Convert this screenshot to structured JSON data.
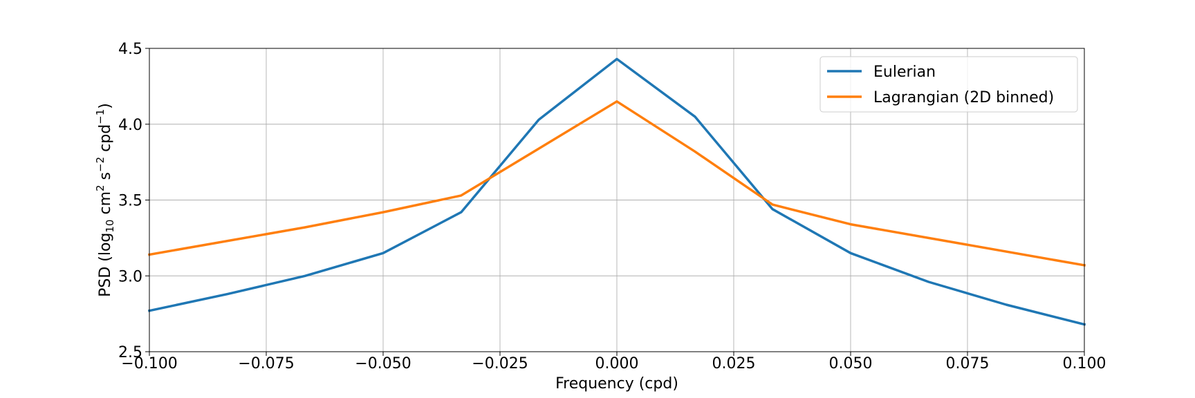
{
  "chart_data": {
    "type": "line",
    "xlabel": "Frequency (cpd)",
    "ylabel": {
      "prefix": "PSD (log",
      "log_subscript": "10",
      "unit_1": " cm",
      "unit_1_exp": "2",
      "unit_2": " s",
      "unit_2_exp": "−2",
      "unit_3": " cpd",
      "unit_3_exp": "−1",
      "suffix": ")"
    },
    "xlim": [
      -0.1,
      0.1
    ],
    "ylim": [
      2.5,
      4.5
    ],
    "xticks": [
      -0.1,
      -0.075,
      -0.05,
      -0.025,
      0.0,
      0.025,
      0.05,
      0.075,
      0.1
    ],
    "xtick_labels": [
      "−0.100",
      "−0.075",
      "−0.050",
      "−0.025",
      "0.000",
      "0.025",
      "0.050",
      "0.075",
      "0.100"
    ],
    "yticks": [
      2.5,
      3.0,
      3.5,
      4.0,
      4.5
    ],
    "ytick_labels": [
      "2.5",
      "3.0",
      "3.5",
      "4.0",
      "4.5"
    ],
    "grid": true,
    "legend_position": "top-right",
    "series": [
      {
        "name": "Eulerian",
        "color": "#1f77b4",
        "x": [
          -0.1,
          -0.0833,
          -0.0667,
          -0.05,
          -0.0333,
          -0.0167,
          0.0,
          0.0167,
          0.0333,
          0.05,
          0.0667,
          0.0833,
          0.1
        ],
        "y": [
          2.77,
          2.88,
          3.0,
          3.15,
          3.42,
          4.03,
          4.43,
          4.05,
          3.44,
          3.15,
          2.96,
          2.81,
          2.68
        ]
      },
      {
        "name": "Lagrangian (2D binned)",
        "color": "#ff7f0e",
        "x": [
          -0.1,
          -0.0667,
          -0.05,
          -0.0333,
          0.0,
          0.0167,
          0.0333,
          0.05,
          0.1
        ],
        "y": [
          3.14,
          3.32,
          3.42,
          3.53,
          4.15,
          3.82,
          3.47,
          3.34,
          3.07
        ]
      }
    ]
  }
}
